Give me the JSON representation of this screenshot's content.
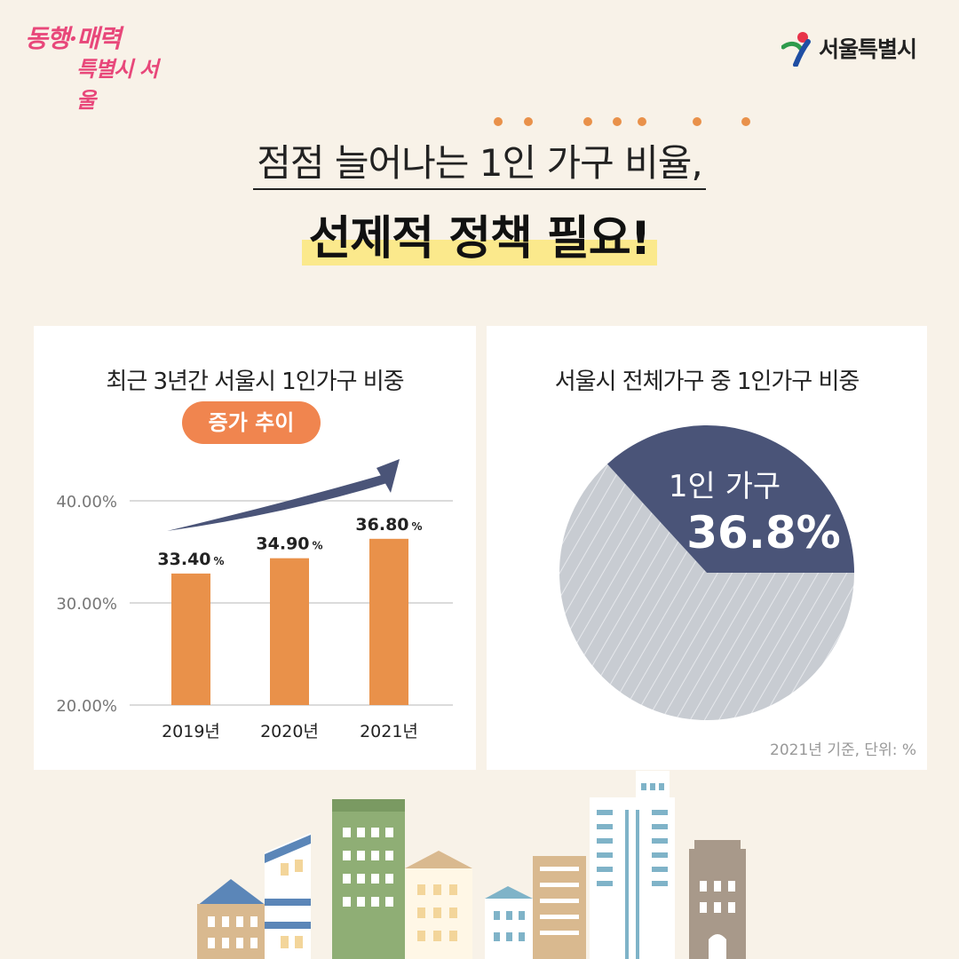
{
  "logo_left": {
    "line1": "동행·매력",
    "line2": "특별시 서울"
  },
  "logo_right": {
    "text": "서울특별시"
  },
  "title": {
    "line1": "점점 늘어나는 1인 가구 비율,",
    "line2": "선제적 정책 필요!"
  },
  "colors": {
    "bar": "#e9914a",
    "arrow": "#4a5478",
    "pie_main": "#4a5478",
    "pie_rest": "#c8ccd2",
    "badge": "#f0854f",
    "highlight": "#fbe98c"
  },
  "bar_panel": {
    "title": "최근 3년간 서울시 1인가구 비중",
    "badge": "증가 추이"
  },
  "pie_panel": {
    "title": "서울시 전체가구 중 1인가구 비중",
    "label_main": "1인 가구",
    "value_label": "36.8%",
    "note": "2021년 기준, 단위: %"
  },
  "chart_data": [
    {
      "type": "bar",
      "title": "최근 3년간 서울시 1인가구 비중",
      "categories": [
        "2019년",
        "2020년",
        "2021년"
      ],
      "values": [
        33.4,
        34.9,
        36.8
      ],
      "value_labels": [
        "33.40",
        "34.90",
        "36.80"
      ],
      "unit": "%",
      "ylim": [
        20,
        40
      ],
      "yticks": [
        "20.00%",
        "30.00%",
        "40.00%"
      ],
      "ytick_values": [
        20,
        30,
        40
      ],
      "grid": true
    },
    {
      "type": "pie",
      "title": "서울시 전체가구 중 1인가구 비중",
      "slices": [
        {
          "name": "1인 가구",
          "value": 36.8
        },
        {
          "name": "",
          "value": 63.2
        }
      ]
    }
  ]
}
